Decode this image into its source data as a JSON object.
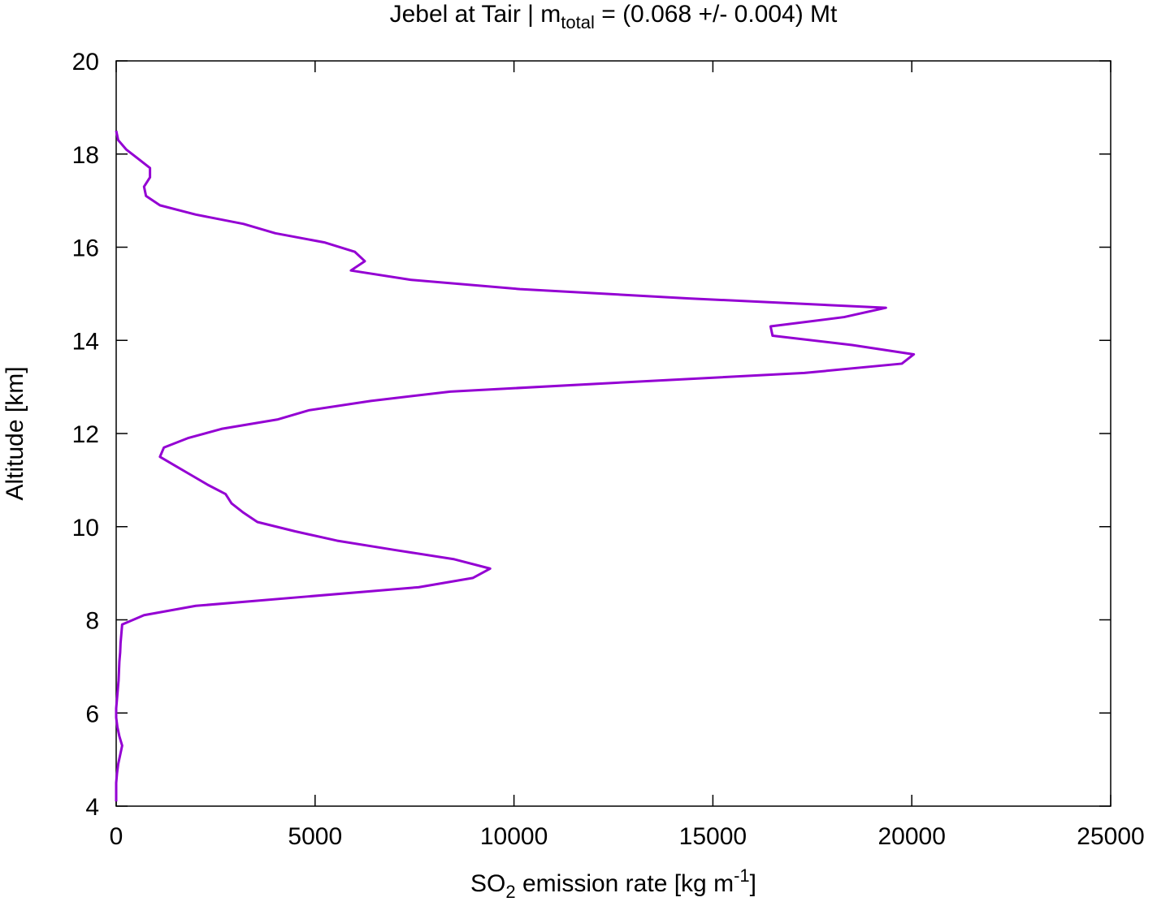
{
  "chart_data": {
    "type": "line",
    "title": {
      "main": "Jebel at Tair | m",
      "sub": "total",
      "rest": " = (0.068 +/- 0.004) Mt"
    },
    "xlabel": {
      "main": "SO",
      "sub": "2",
      "rest": " emission rate [kg m",
      "sup": "-1",
      "end": "]"
    },
    "ylabel": "Altitude [km]",
    "y": [
      4.1,
      4.3,
      4.5,
      4.7,
      4.9,
      5.1,
      5.3,
      5.5,
      5.7,
      5.9,
      6.1,
      6.3,
      6.5,
      6.7,
      6.9,
      7.1,
      7.3,
      7.5,
      7.7,
      7.9,
      8.1,
      8.3,
      8.5,
      8.7,
      8.9,
      9.1,
      9.3,
      9.5,
      9.7,
      9.9,
      10.1,
      10.3,
      10.5,
      10.7,
      10.9,
      11.1,
      11.3,
      11.5,
      11.7,
      11.9,
      12.1,
      12.3,
      12.5,
      12.7,
      12.9,
      13.1,
      13.3,
      13.5,
      13.7,
      13.9,
      14.1,
      14.3,
      14.5,
      14.7,
      14.9,
      15.1,
      15.3,
      15.5,
      15.7,
      15.9,
      16.1,
      16.3,
      16.5,
      16.7,
      16.9,
      17.1,
      17.3,
      17.5,
      17.7,
      17.9,
      18.1,
      18.3,
      18.5
    ],
    "series": [
      {
        "color": "#9400d3",
        "values": [
          0,
          0,
          0,
          20,
          50,
          100,
          150,
          80,
          30,
          0,
          0,
          20,
          40,
          60,
          70,
          80,
          100,
          110,
          130,
          150,
          700,
          2000,
          4800,
          7600,
          8970,
          9400,
          8500,
          7000,
          5550,
          4500,
          3550,
          3200,
          2900,
          2750,
          2300,
          1900,
          1500,
          1100,
          1200,
          1800,
          2650,
          4050,
          4850,
          6400,
          8400,
          12800,
          17300,
          19750,
          20050,
          18500,
          16500,
          16450,
          18300,
          19350,
          14400,
          10150,
          7400,
          5900,
          6250,
          6000,
          5250,
          4000,
          3200,
          2000,
          1100,
          750,
          700,
          850,
          850,
          550,
          250,
          50,
          0
        ]
      }
    ],
    "xlim": [
      0,
      25000
    ],
    "xticks": [
      0,
      5000,
      10000,
      15000,
      20000,
      25000
    ],
    "ylim": [
      4,
      20
    ],
    "yticks": [
      4,
      6,
      8,
      10,
      12,
      14,
      16,
      18,
      20
    ]
  }
}
